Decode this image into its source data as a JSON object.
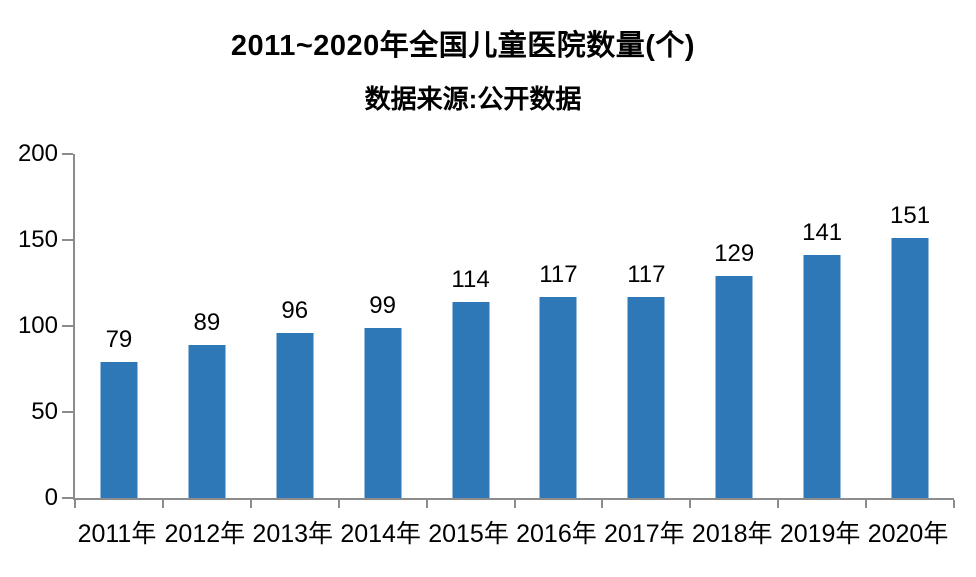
{
  "chart": {
    "title": "2011~2020年全国儿童医院数量(个)",
    "subtitle": "数据来源:公开数据"
  },
  "chart_data": {
    "type": "bar",
    "title": "2011~2020年全国儿童医院数量(个)",
    "subtitle": "数据来源:公开数据",
    "categories": [
      "2011年",
      "2012年",
      "2013年",
      "2014年",
      "2015年",
      "2016年",
      "2017年",
      "2018年",
      "2019年",
      "2020年"
    ],
    "values": [
      79,
      89,
      96,
      99,
      114,
      117,
      117,
      129,
      141,
      151
    ],
    "xlabel": "",
    "ylabel": "",
    "ylim": [
      0,
      200
    ],
    "yticks": [
      0,
      50,
      100,
      150,
      200
    ],
    "grid": false,
    "legend_position": "none",
    "data_labels": true,
    "colors": {
      "bar": "#2E78B8",
      "axis": "#8C8C8C",
      "text": "#000000",
      "background": "#FFFFFF"
    }
  }
}
